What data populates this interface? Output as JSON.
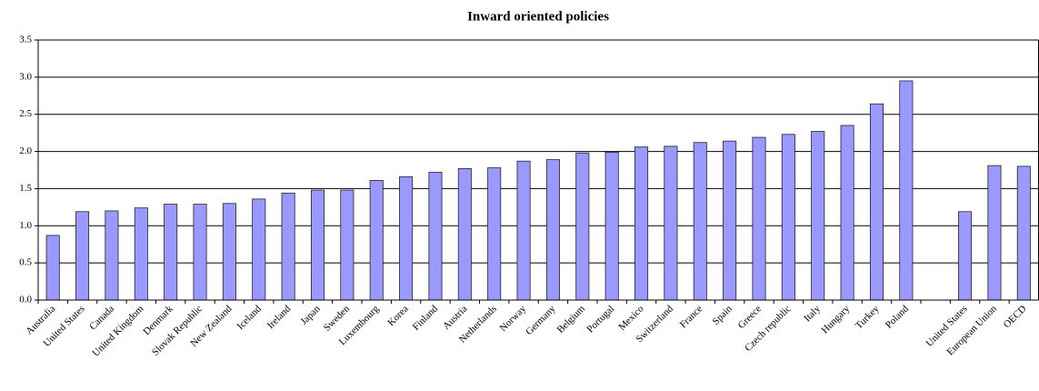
{
  "chart_data": {
    "type": "bar",
    "title": "Inward oriented policies",
    "categories": [
      "Australia",
      "United States",
      "Canada",
      "United Kingdom",
      "Denmark",
      "Slovak Republic",
      "New Zealand",
      "Iceland",
      "Ireland",
      "Japan",
      "Sweden",
      "Luxembourg",
      "Korea",
      "Finland",
      "Austria",
      "Netherlands",
      "Norway",
      "Germany",
      "Belgium",
      "Portugal",
      "Mexico",
      "Switzerland",
      "France",
      "Spain",
      "Greece",
      "Czech republic",
      "Italy",
      "Hungary",
      "Turkey",
      "Poland",
      null,
      "United States",
      "European Union",
      "OECD"
    ],
    "values": [
      0.87,
      1.19,
      1.2,
      1.24,
      1.29,
      1.29,
      1.3,
      1.36,
      1.44,
      1.48,
      1.48,
      1.61,
      1.66,
      1.72,
      1.77,
      1.78,
      1.87,
      1.89,
      1.98,
      1.99,
      2.06,
      2.07,
      2.12,
      2.14,
      2.19,
      2.23,
      2.27,
      2.35,
      2.64,
      2.95,
      null,
      1.19,
      1.81,
      1.8
    ],
    "color": "#9999ff",
    "ylim": [
      0,
      3.5
    ],
    "yticks": [
      {
        "value": 0,
        "label": "0.0"
      },
      0.5,
      {
        "value": 1,
        "label": "1.0"
      },
      1.5,
      {
        "value": 2,
        "label": "2.0"
      },
      2.5,
      {
        "value": 3,
        "label": "3.0"
      },
      3.5
    ],
    "grid": true
  }
}
